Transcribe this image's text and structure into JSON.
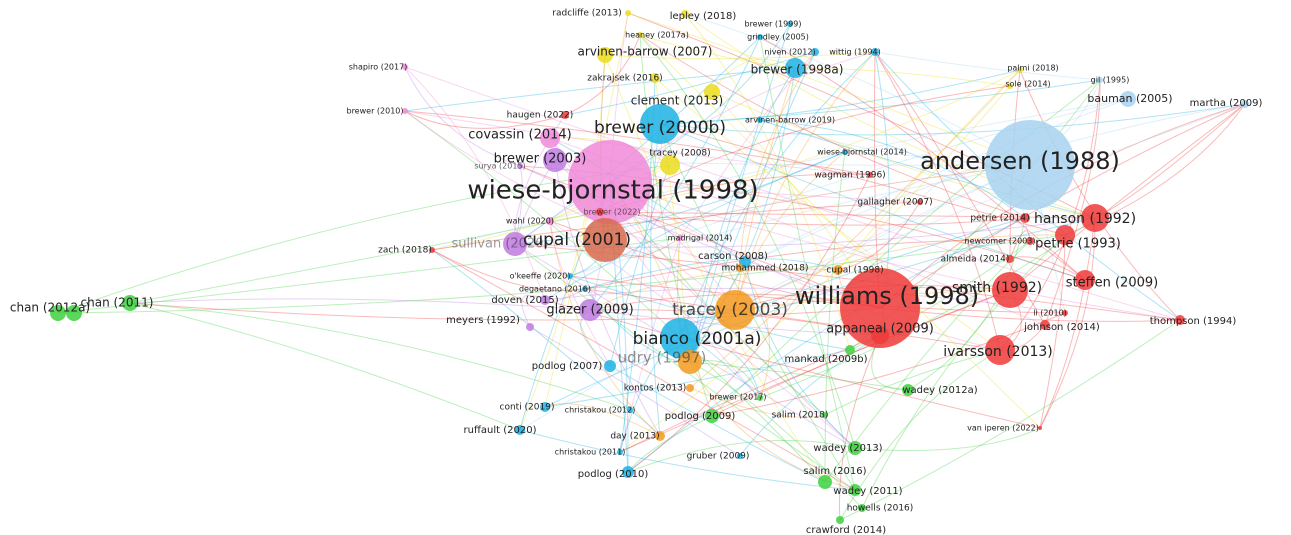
{
  "nodes": [
    {
      "label": "wiese-bjornstal (1998)"
    },
    {
      "label": "andersen (1988)"
    },
    {
      "label": "williams (1998)"
    },
    {
      "label": "cupal (2001)"
    },
    {
      "label": "brewer (2000b)"
    },
    {
      "label": "bianco (2001a)"
    },
    {
      "label": "tracey (2003)"
    },
    {
      "label": "udry (1997)"
    },
    {
      "label": "smith (1992)"
    },
    {
      "label": "ivarsson (2013)"
    },
    {
      "label": "hanson (1992)"
    },
    {
      "label": "petrie (1993)"
    },
    {
      "label": "steffen (2009)"
    },
    {
      "label": "appaneal (2009)"
    },
    {
      "label": "covassin (2014)"
    },
    {
      "label": "brewer (2003)"
    },
    {
      "label": "clement (2013)"
    },
    {
      "label": "arvinen-barrow (2007)"
    },
    {
      "label": "brewer (1998a)"
    },
    {
      "label": "glazer (2009)"
    },
    {
      "label": "sullivan (2020)"
    },
    {
      "label": "chan (2012a)"
    },
    {
      "label": "chan (2011)"
    },
    {
      "label": "podlog (2007)"
    },
    {
      "label": "podlog (2009)"
    },
    {
      "label": "podlog (2010)"
    },
    {
      "label": "wadey (2012a)"
    },
    {
      "label": "wadey (2013)"
    },
    {
      "label": "salim (2016)"
    },
    {
      "label": "wadey (2011)"
    },
    {
      "label": "howells (2016)"
    },
    {
      "label": "crawford (2014)"
    },
    {
      "label": "mankad (2009b)"
    },
    {
      "label": "thompson (1994)"
    },
    {
      "label": "johnson (2014)"
    },
    {
      "label": "bauman (2005)"
    },
    {
      "label": "martha (2009)"
    },
    {
      "label": "gil (1995)"
    },
    {
      "label": "palmi (2018)"
    },
    {
      "label": "sole (2014)"
    },
    {
      "label": "wittig (1994)"
    },
    {
      "label": "niven (2012)"
    },
    {
      "label": "brewer (1999)"
    },
    {
      "label": "grindley (2005)"
    },
    {
      "label": "lepley (2018)"
    },
    {
      "label": "radcliffe (2013)"
    },
    {
      "label": "heaney (2017a)"
    },
    {
      "label": "zakrajsek (2016)"
    },
    {
      "label": "haugen (2022)"
    },
    {
      "label": "arvinen-barrow (2019)"
    },
    {
      "label": "tracey (2008)"
    },
    {
      "label": "wiese-bjornstal (2014)"
    },
    {
      "label": "wagman (1996)"
    },
    {
      "label": "gallagher (2007)"
    },
    {
      "label": "petrie (2014)"
    },
    {
      "label": "newcomer (2003)"
    },
    {
      "label": "almeida (2014)"
    },
    {
      "label": "cupal (1998)"
    },
    {
      "label": "carson (2008)"
    },
    {
      "label": "mohammed (2018)"
    },
    {
      "label": "madrigal (2014)"
    },
    {
      "label": "brewer (2022)"
    },
    {
      "label": "zach (2018)"
    },
    {
      "label": "o'keeffe (2020)"
    },
    {
      "label": "degaetano (2016)"
    },
    {
      "label": "doven (2015)"
    },
    {
      "label": "meyers (1992)"
    },
    {
      "label": "kontos (2013)"
    },
    {
      "label": "brewer (2017)"
    },
    {
      "label": "salim (2018)"
    },
    {
      "label": "christakou (2012)"
    },
    {
      "label": "conti (2019)"
    },
    {
      "label": "ruffault (2020)"
    },
    {
      "label": "day (2013)"
    },
    {
      "label": "christakou (2011)"
    },
    {
      "label": "gruber (2009)"
    },
    {
      "label": "shapiro (2017)"
    },
    {
      "label": "brewer (2010)"
    },
    {
      "label": "surya (2015)"
    },
    {
      "label": "wahl (2020)"
    },
    {
      "label": "li (2010)"
    },
    {
      "label": "van iperen (2022)"
    }
  ]
}
